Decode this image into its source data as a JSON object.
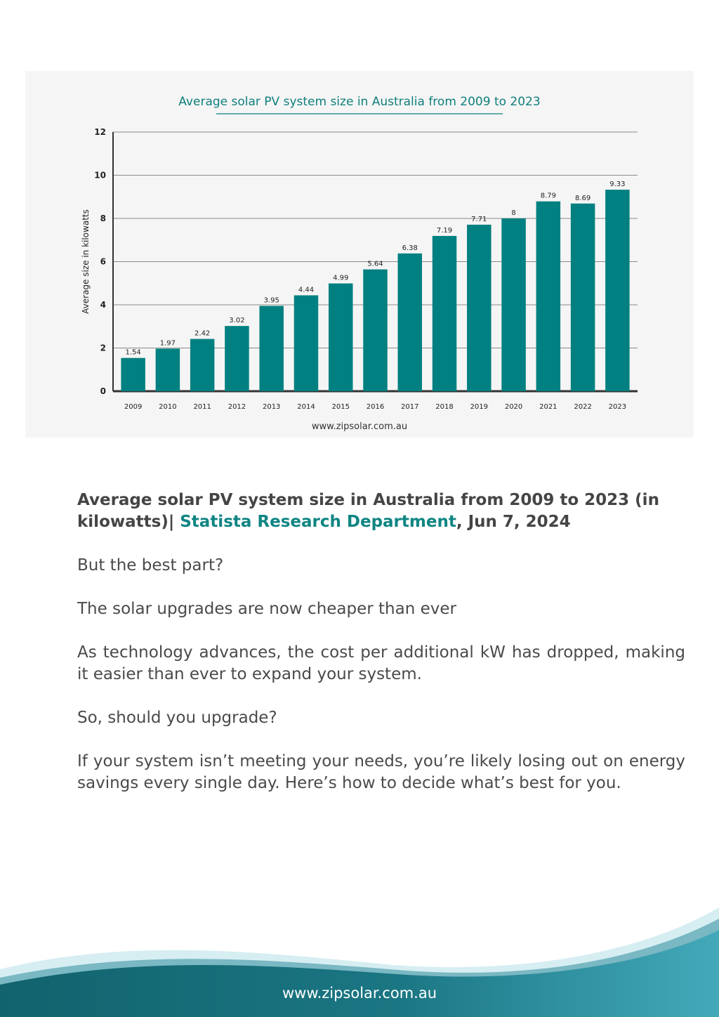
{
  "chart_data": {
    "type": "bar",
    "title": "Average solar PV system size in Australia from 2009 to 2023",
    "ylabel": "Average size in kilowatts",
    "xlabel": "",
    "ylim": [
      0,
      12
    ],
    "yticks": [
      0,
      2,
      4,
      6,
      8,
      10,
      12
    ],
    "grid": true,
    "bar_color": "#008080",
    "categories": [
      "2009",
      "2010",
      "2011",
      "2012",
      "2013",
      "2014",
      "2015",
      "2016",
      "2017",
      "2018",
      "2019",
      "2020",
      "2021",
      "2022",
      "2023"
    ],
    "values": [
      1.54,
      1.97,
      2.42,
      3.02,
      3.95,
      4.44,
      4.99,
      5.64,
      6.38,
      7.19,
      7.71,
      8,
      8.79,
      8.69,
      9.33
    ],
    "value_labels": [
      "1.54",
      "1.97",
      "2.42",
      "3.02",
      "3.95",
      "4.44",
      "4.99",
      "5.64",
      "6.38",
      "7.19",
      "7.71",
      "8",
      "8.79",
      "8.69",
      "9.33"
    ],
    "source_note": "www.zipsolar.com.au"
  },
  "caption": {
    "text": "Average solar PV system size in Australia from 2009 to 2023 (in kilowatts)| ",
    "source": "Statista Research Department",
    "date": ", Jun 7, 2024"
  },
  "paragraphs": {
    "p1": "But the best part?",
    "p2": "The solar upgrades are now cheaper than ever",
    "p3": "As technology advances, the cost per additional kW has dropped, making it easier than ever to expand your system.",
    "p4": "So, should you upgrade?",
    "p5": "If your system isn’t meeting your needs, you’re likely losing out on energy savings every single day. Here’s how to decide what’s best for you."
  },
  "footer": {
    "url": "www.zipsolar.com.au"
  },
  "colors": {
    "accent": "#0f8583",
    "bar": "#008080",
    "footer_dark": "#11636d",
    "footer_light": "#43a9ba"
  }
}
